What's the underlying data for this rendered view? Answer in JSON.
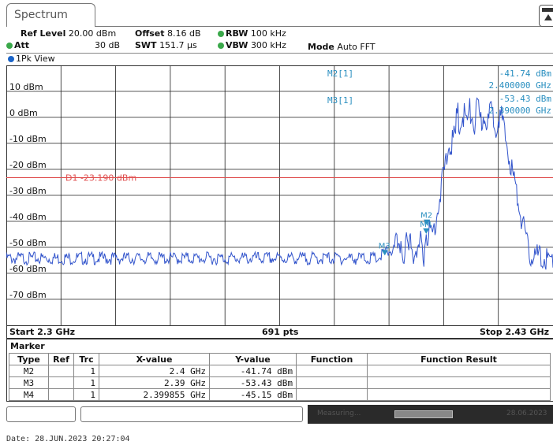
{
  "tab": {
    "title": "Spectrum"
  },
  "settings": {
    "ref_level_label": "Ref Level",
    "ref_level_value": "20.00 dBm",
    "offset_label": "Offset",
    "offset_value": "8.16 dB",
    "rbw_label": "RBW",
    "rbw_value": "100 kHz",
    "att_label": "Att",
    "att_value": "30 dB",
    "swt_label": "SWT",
    "swt_value": "151.7 µs",
    "vbw_label": "VBW",
    "vbw_value": "300 kHz",
    "mode_label": "Mode",
    "mode_value": "Auto FFT"
  },
  "view": {
    "label": "1Pk View"
  },
  "plot": {
    "y_ticks": [
      "10 dBm",
      "0 dBm",
      "-10 dBm",
      "-20 dBm",
      "-30 dBm",
      "-40 dBm",
      "-50 dBm",
      "-60 dBm",
      "-70 dBm"
    ],
    "display_line_label": "D1 -23.190 dBm",
    "marker_readout": [
      {
        "name": "M2[1]",
        "y": "-41.74 dBm",
        "x": "2.400000 GHz"
      },
      {
        "name": "M3[1]",
        "y": "-53.43 dBm",
        "x": "2.390000 GHz"
      }
    ],
    "marker_labels": [
      "M2",
      "M4",
      "M3"
    ],
    "start": "Start 2.3 GHz",
    "points": "691 pts",
    "stop": "Stop 2.43 GHz"
  },
  "marker_table": {
    "title": "Marker",
    "headers": [
      "Type",
      "Ref",
      "Trc",
      "X-value",
      "Y-value",
      "Function",
      "Function Result"
    ],
    "rows": [
      {
        "type": "M2",
        "ref": "",
        "trc": "1",
        "x": "2.4 GHz",
        "y": "-41.74 dBm",
        "func": "",
        "result": ""
      },
      {
        "type": "M3",
        "ref": "",
        "trc": "1",
        "x": "2.39 GHz",
        "y": "-53.43 dBm",
        "func": "",
        "result": ""
      },
      {
        "type": "M4",
        "ref": "",
        "trc": "1",
        "x": "2.399855 GHz",
        "y": "-45.15 dBm",
        "func": "",
        "result": ""
      }
    ]
  },
  "statusbar": {
    "measuring": "Measuring...",
    "date": "28.06.2023"
  },
  "footer": {
    "date_line": "Date: 28.JUN.2023  20:27:04"
  },
  "colors": {
    "trace": "#3355cc",
    "display_line": "#e05050",
    "marker": "#2a8fc0",
    "grid": "#222222"
  }
}
